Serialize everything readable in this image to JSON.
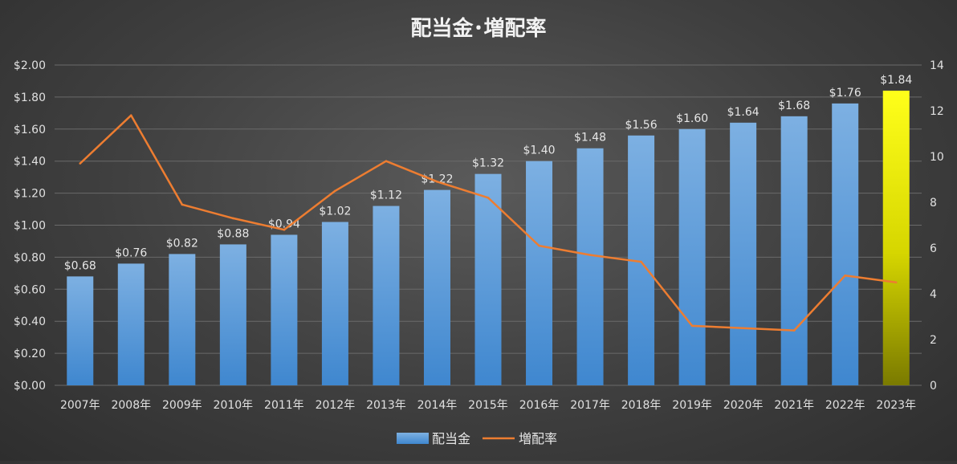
{
  "chart_data": {
    "title": "配当金･増配率",
    "categories": [
      "2007年",
      "2008年",
      "2009年",
      "2010年",
      "2011年",
      "2012年",
      "2013年",
      "2014年",
      "2015年",
      "2016年",
      "2017年",
      "2018年",
      "2019年",
      "2020年",
      "2021年",
      "2022年",
      "2023年"
    ],
    "series": [
      {
        "name": "配当金",
        "type": "bar",
        "axis": "left",
        "values": [
          0.68,
          0.76,
          0.82,
          0.88,
          0.94,
          1.02,
          1.12,
          1.22,
          1.32,
          1.4,
          1.48,
          1.56,
          1.6,
          1.64,
          1.68,
          1.76,
          1.84
        ],
        "data_labels": [
          "$0.68",
          "$0.76",
          "$0.82",
          "$0.88",
          "$0.94",
          "$1.02",
          "$1.12",
          "$1.22",
          "$1.32",
          "$1.40",
          "$1.48",
          "$1.56",
          "$1.60",
          "$1.64",
          "$1.68",
          "$1.76",
          "$1.84"
        ],
        "color": "#5b9bd5",
        "highlight_last_color": "#f5f500"
      },
      {
        "name": "増配率",
        "type": "line",
        "axis": "right",
        "values": [
          9.7,
          11.8,
          7.9,
          7.3,
          6.8,
          8.5,
          9.8,
          8.9,
          8.2,
          6.1,
          5.7,
          5.4,
          2.6,
          2.5,
          2.4,
          4.8,
          4.5
        ],
        "color": "#ed7d31"
      }
    ],
    "y_left": {
      "min": 0,
      "max": 2.0,
      "ticks": [
        0,
        0.2,
        0.4,
        0.6,
        0.8,
        1.0,
        1.2,
        1.4,
        1.6,
        1.8,
        2.0
      ],
      "tick_labels": [
        "$0.00",
        "$0.20",
        "$0.40",
        "$0.60",
        "$0.80",
        "$1.00",
        "$1.20",
        "$1.40",
        "$1.60",
        "$1.80",
        "$2.00"
      ]
    },
    "y_right": {
      "min": 0,
      "max": 14,
      "ticks": [
        0,
        2,
        4,
        6,
        8,
        10,
        12,
        14
      ],
      "tick_labels": [
        "0",
        "2",
        "4",
        "6",
        "8",
        "10",
        "12",
        "14"
      ]
    },
    "grid": true,
    "legend_position": "bottom"
  }
}
